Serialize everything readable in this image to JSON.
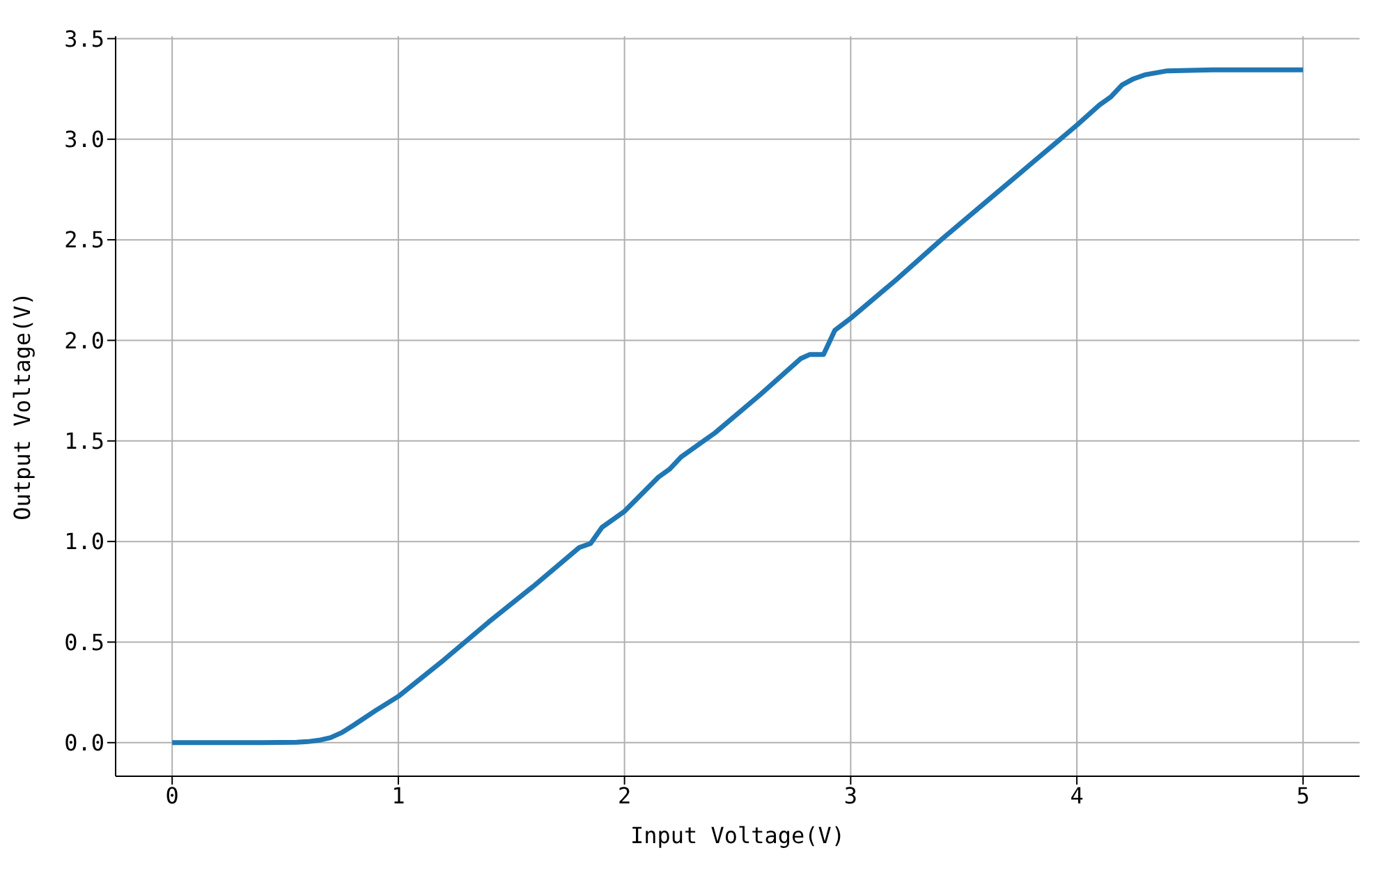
{
  "chart_data": {
    "type": "line",
    "xlabel": "Input Voltage(V)",
    "ylabel": "Output Voltage(V)",
    "x": [
      0,
      0.2,
      0.4,
      0.55,
      0.6,
      0.65,
      0.7,
      0.75,
      0.8,
      0.9,
      1.0,
      1.2,
      1.4,
      1.6,
      1.8,
      1.85,
      1.9,
      2.0,
      2.15,
      2.2,
      2.25,
      2.4,
      2.6,
      2.78,
      2.82,
      2.88,
      2.93,
      3.0,
      3.2,
      3.4,
      3.6,
      3.8,
      4.0,
      4.1,
      4.15,
      4.2,
      4.25,
      4.3,
      4.4,
      4.6,
      5.0
    ],
    "series": [
      {
        "color": "#1f77b4",
        "values": [
          0,
          0,
          0,
          0.002,
          0.005,
          0.012,
          0.025,
          0.05,
          0.085,
          0.16,
          0.23,
          0.41,
          0.6,
          0.78,
          0.97,
          0.99,
          1.07,
          1.15,
          1.32,
          1.36,
          1.42,
          1.54,
          1.73,
          1.91,
          1.93,
          1.93,
          2.05,
          2.11,
          2.3,
          2.5,
          2.69,
          2.88,
          3.07,
          3.17,
          3.21,
          3.27,
          3.3,
          3.32,
          3.34,
          3.345,
          3.345
        ]
      }
    ],
    "xlim": [
      -0.25,
      5.25
    ],
    "xticks": [
      0,
      1,
      2,
      3,
      4,
      5
    ],
    "ylim": [
      -0.167,
      3.512
    ],
    "yticks": [
      {
        "value": 0,
        "label": "0.0"
      },
      {
        "value": 0.5,
        "label": "0.5"
      },
      {
        "value": 1,
        "label": "1.0"
      },
      {
        "value": 1.5,
        "label": "1.5"
      },
      {
        "value": 2,
        "label": "2.0"
      },
      {
        "value": 2.5,
        "label": "2.5"
      },
      {
        "value": 3,
        "label": "3.0"
      },
      {
        "value": 3.5,
        "label": "3.5"
      }
    ],
    "grid": true,
    "legend": false,
    "marker": "none",
    "line_style": "solid"
  }
}
